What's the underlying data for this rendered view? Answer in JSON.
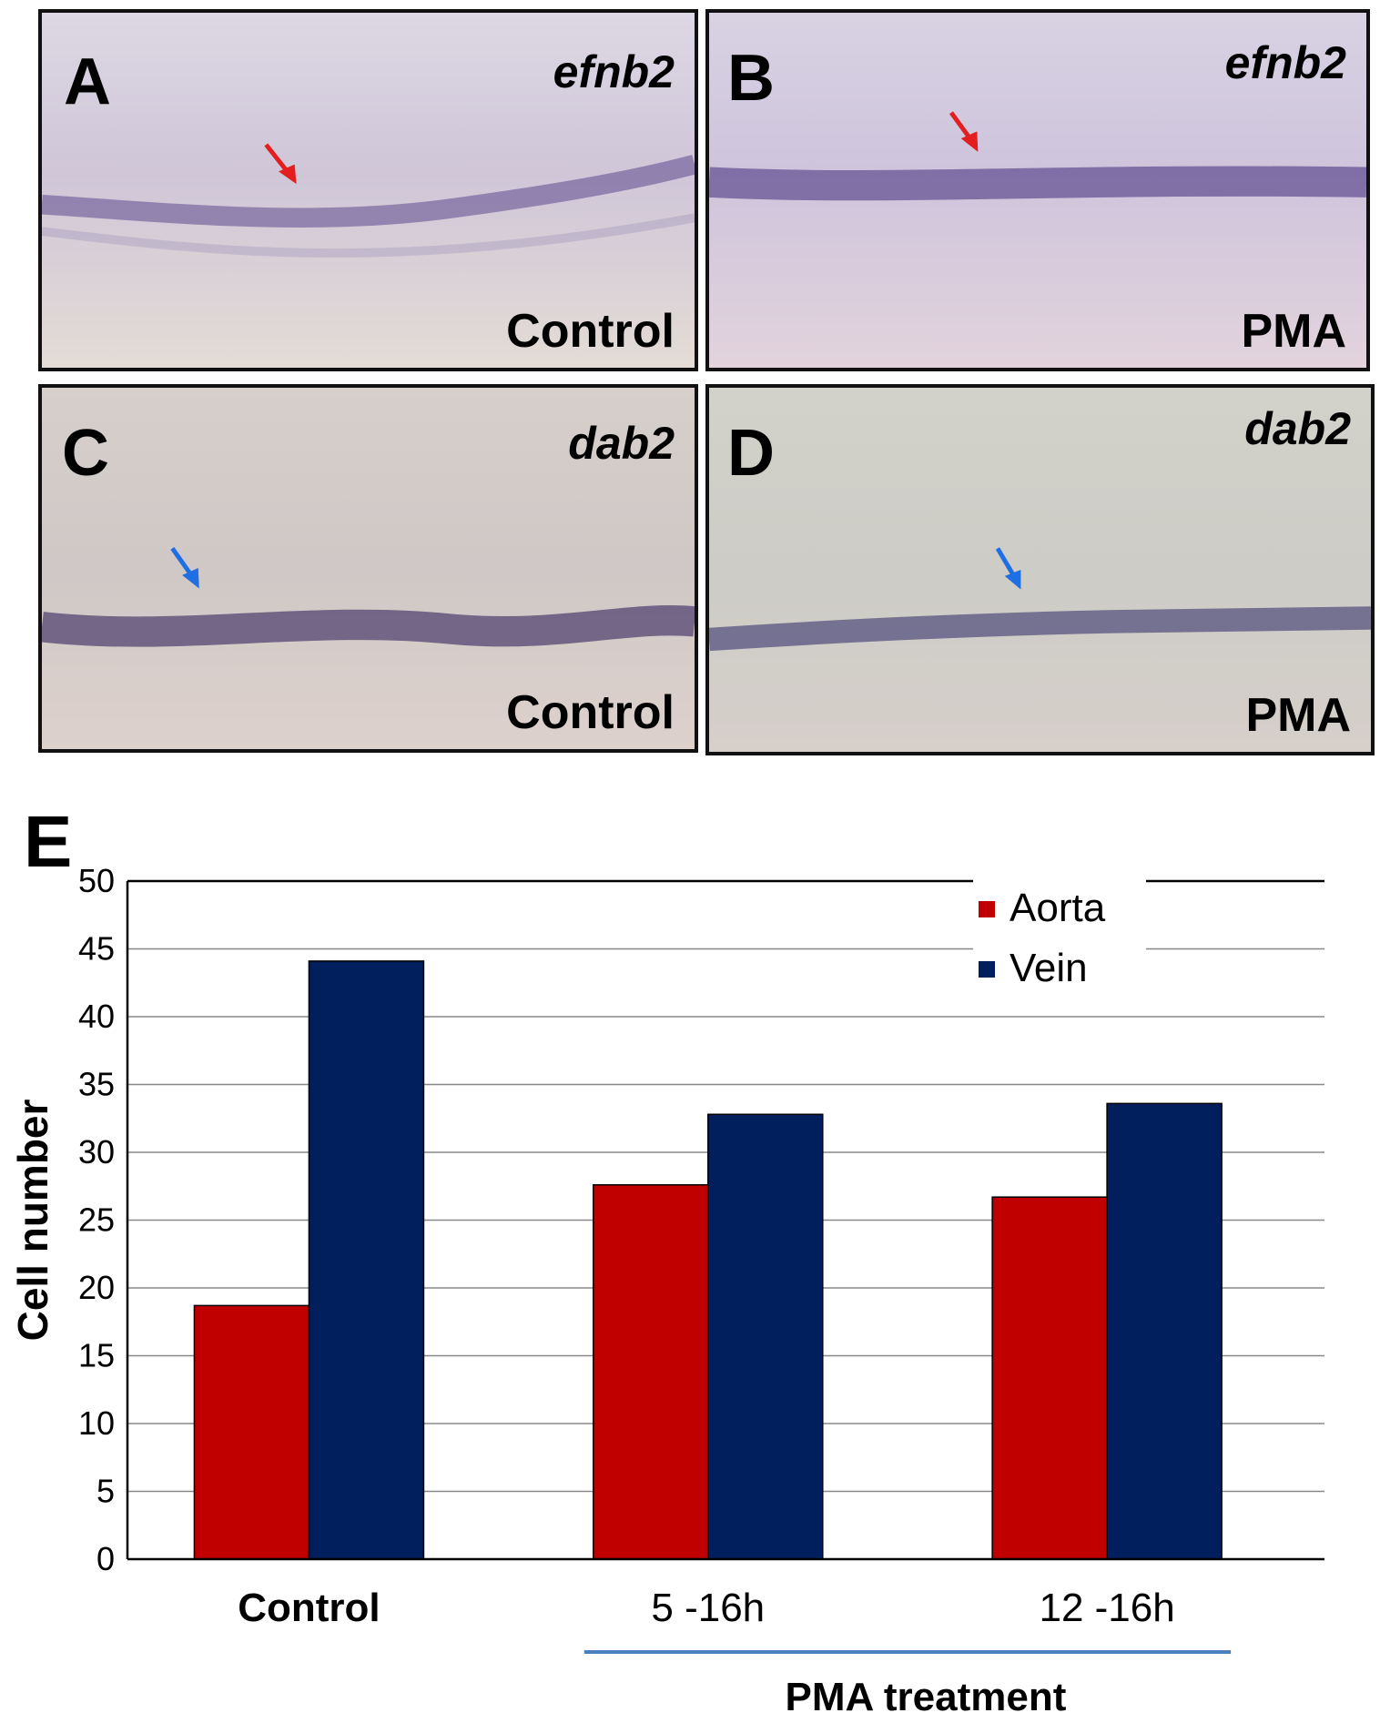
{
  "panels": [
    {
      "letter": "A",
      "gene": "efnb2",
      "condition": "Control",
      "arrow_color": "#e41e1e"
    },
    {
      "letter": "B",
      "gene": "efnb2",
      "condition": "PMA",
      "arrow_color": "#e41e1e"
    },
    {
      "letter": "C",
      "gene": "dab2",
      "condition": "Control",
      "arrow_color": "#1e6ee4"
    },
    {
      "letter": "D",
      "gene": "dab2",
      "condition": "PMA",
      "arrow_color": "#1e6ee4"
    }
  ],
  "panel_e_letter": "E",
  "chart_data": {
    "type": "bar",
    "categories": [
      "Control",
      "5 -16h",
      "12 -16h"
    ],
    "series": [
      {
        "name": "Aorta",
        "values": [
          18.7,
          27.6,
          26.7
        ],
        "color": "#c00000"
      },
      {
        "name": "Vein",
        "values": [
          44.1,
          32.8,
          33.6
        ],
        "color": "#001f5c"
      }
    ],
    "ylabel": "Cell number",
    "ylim": [
      0,
      50
    ],
    "yticks": [
      0,
      5,
      10,
      15,
      20,
      25,
      30,
      35,
      40,
      45,
      50
    ],
    "grid": true,
    "legend_position": "top-right",
    "group_label": "PMA treatment"
  }
}
